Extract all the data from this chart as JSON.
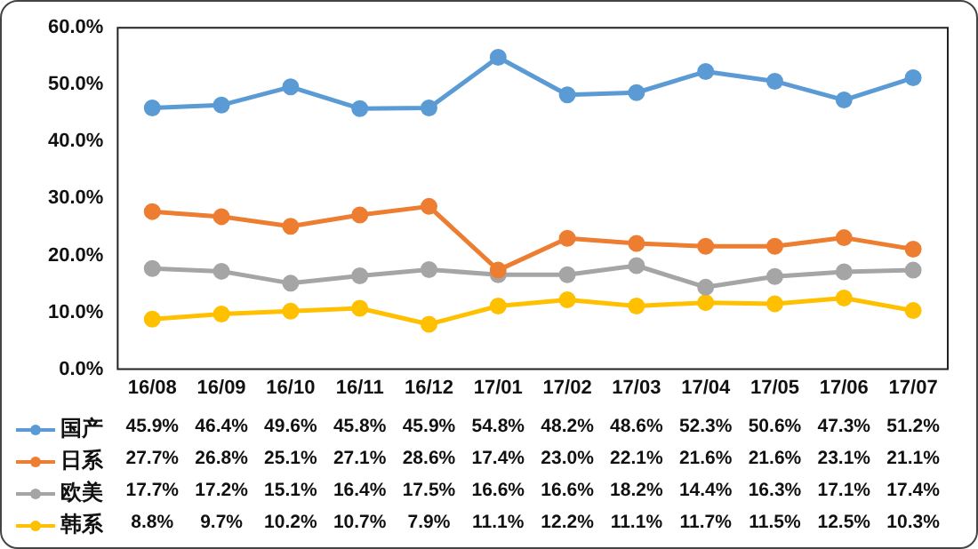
{
  "chart_data": {
    "type": "line",
    "categories": [
      "16/08",
      "16/09",
      "16/10",
      "16/11",
      "16/12",
      "17/01",
      "17/02",
      "17/03",
      "17/04",
      "17/05",
      "17/06",
      "17/07"
    ],
    "series": [
      {
        "name": "国产",
        "color": "#5b9bd5",
        "values": [
          45.9,
          46.4,
          49.6,
          45.8,
          45.9,
          54.8,
          48.2,
          48.6,
          52.3,
          50.6,
          47.3,
          51.2
        ],
        "value_labels": [
          "45.9%",
          "46.4%",
          "49.6%",
          "45.8%",
          "45.9%",
          "54.8%",
          "48.2%",
          "48.6%",
          "52.3%",
          "50.6%",
          "47.3%",
          "51.2%"
        ]
      },
      {
        "name": "日系",
        "color": "#ed7d31",
        "values": [
          27.7,
          26.8,
          25.1,
          27.1,
          28.6,
          17.4,
          23.0,
          22.1,
          21.6,
          21.6,
          23.1,
          21.1
        ],
        "value_labels": [
          "27.7%",
          "26.8%",
          "25.1%",
          "27.1%",
          "28.6%",
          "17.4%",
          "23.0%",
          "22.1%",
          "21.6%",
          "21.6%",
          "23.1%",
          "21.1%"
        ]
      },
      {
        "name": "欧美",
        "color": "#a5a5a5",
        "values": [
          17.7,
          17.2,
          15.1,
          16.4,
          17.5,
          16.6,
          16.6,
          18.2,
          14.4,
          16.3,
          17.1,
          17.4
        ],
        "value_labels": [
          "17.7%",
          "17.2%",
          "15.1%",
          "16.4%",
          "17.5%",
          "16.6%",
          "16.6%",
          "18.2%",
          "14.4%",
          "16.3%",
          "17.1%",
          "17.4%"
        ]
      },
      {
        "name": "韩系",
        "color": "#ffc000",
        "values": [
          8.8,
          9.7,
          10.2,
          10.7,
          7.9,
          11.1,
          12.2,
          11.1,
          11.7,
          11.5,
          12.5,
          10.3
        ],
        "value_labels": [
          "8.8%",
          "9.7%",
          "10.2%",
          "10.7%",
          "7.9%",
          "11.1%",
          "12.2%",
          "11.1%",
          "11.7%",
          "11.5%",
          "12.5%",
          "10.3%"
        ]
      }
    ],
    "ylim": [
      0,
      60
    ],
    "yticks": [
      {
        "value": 0,
        "label": "0.0%"
      },
      {
        "value": 10,
        "label": "10.0%"
      },
      {
        "value": 20,
        "label": "20.0%"
      },
      {
        "value": 30,
        "label": "30.0%"
      },
      {
        "value": 40,
        "label": "40.0%"
      },
      {
        "value": 50,
        "label": "50.0%"
      },
      {
        "value": 60,
        "label": "60.0%"
      }
    ],
    "grid": false,
    "legend": "bottom",
    "marker": "circle",
    "line_style": "solid"
  }
}
